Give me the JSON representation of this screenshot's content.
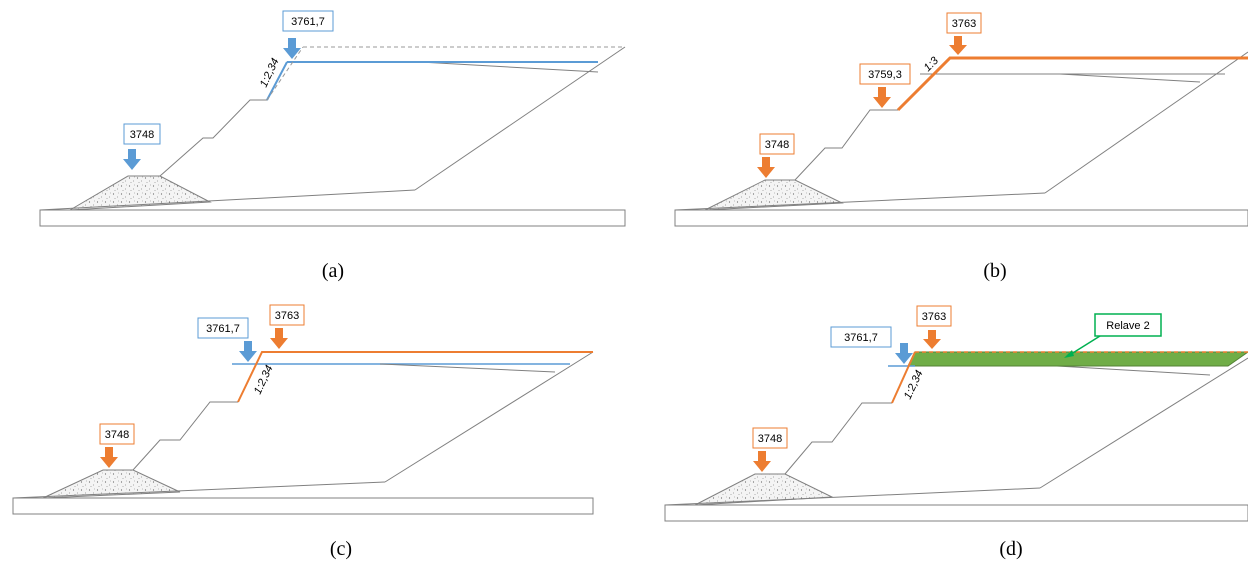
{
  "panels": {
    "a": {
      "caption": "(a)",
      "toe_elevation": "3748",
      "crest_elevation": "3761,7",
      "slope_ratio": "1:2,34"
    },
    "b": {
      "caption": "(b)",
      "toe_elevation": "3748",
      "mid_elevation": "3759,3",
      "crest_elevation": "3763",
      "slope_ratio": "1:3"
    },
    "c": {
      "caption": "(c)",
      "toe_elevation": "3748",
      "prev_elevation": "3761,7",
      "crest_elevation": "3763",
      "slope_ratio": "1:2,34"
    },
    "d": {
      "caption": "(d)",
      "toe_elevation": "3748",
      "prev_elevation": "3761,7",
      "crest_elevation": "3763",
      "slope_ratio": "1:2,34",
      "fill_label": "Relave 2"
    }
  },
  "colors": {
    "blue": "#5b9bd5",
    "orange": "#ed7d31",
    "green": "#70ad47",
    "green_border": "#00b050",
    "outline": "#808080"
  }
}
